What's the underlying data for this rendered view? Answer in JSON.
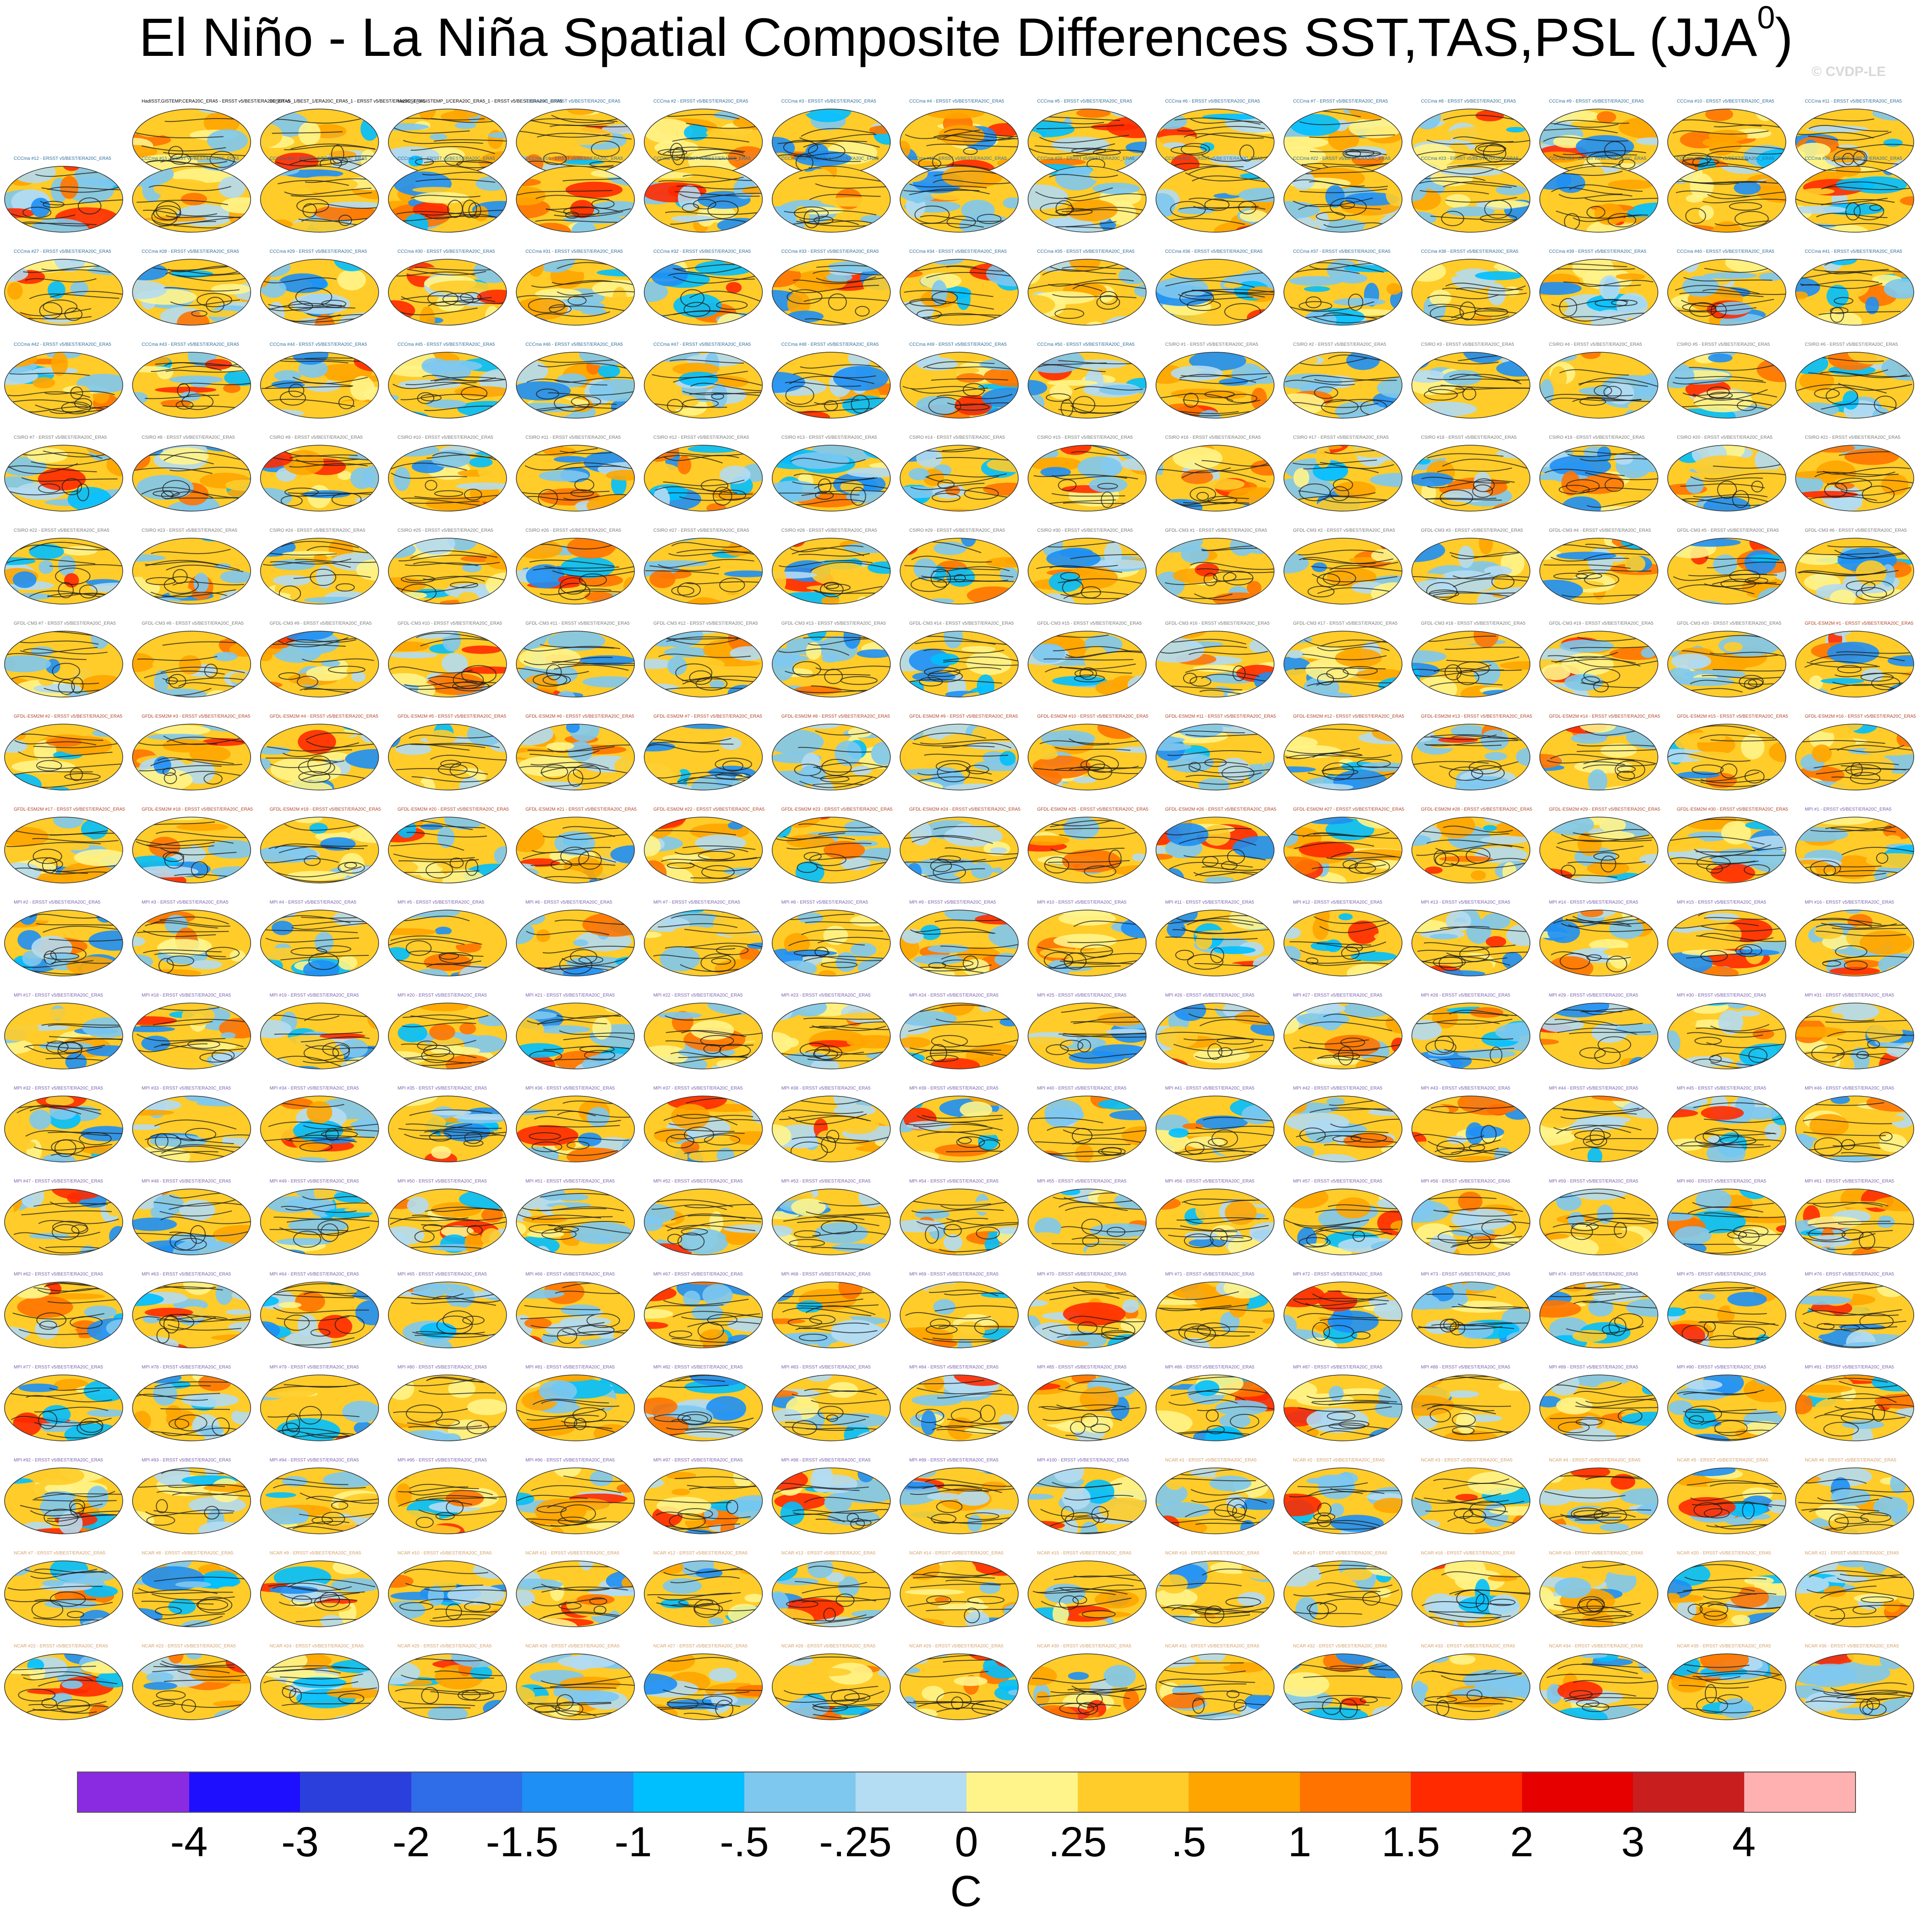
{
  "title": "El Niño - La Niña Spatial Composite Differences SST,TAS,PSL (JJA",
  "title_superscript": "0",
  "title_close": ")",
  "watermark": "© CVDP-LE",
  "panels": {
    "observation_titles": [
      "HadISST,GISTEMP,CERA20C_ERA5 - ERSST v5/BEST/ERA20C_ERA5",
      "ERSST v5_1/BEST_1/ERA20C_ERA5_1 - ERSST v5/BEST/ERA20C_ERA5",
      "HadISST_1/GISTEMP_1/CERA20C_ERA5_1 - ERSST v5/BEST/ERA20C_ERA5"
    ],
    "comparison_suffix": " - ERSST v5/BEST/ERA20C_ERA5",
    "model_groups": [
      {
        "model": "CCCma",
        "count": 50,
        "color": "#2f6f9a"
      },
      {
        "model": "CSIRO",
        "count": 30,
        "color": "#7a7a7a"
      },
      {
        "model": "GFDL-CM3",
        "count": 20,
        "color": "#7a7a7a"
      },
      {
        "model": "GFDL-ESM2M",
        "count": 30,
        "color": "#b0442a"
      },
      {
        "model": "MPI",
        "count": 100,
        "color": "#7a5fb0"
      },
      {
        "model": "NCAR",
        "count": 40,
        "color": "#d4a06a"
      },
      {
        "model": "SMHI_KNMI",
        "count": 16,
        "color": "#7a5fb0"
      }
    ]
  },
  "colorbar": {
    "colors": [
      "#8a2be2",
      "#1e0fff",
      "#2b3fdd",
      "#2f6ce8",
      "#1e8ff5",
      "#00bfff",
      "#7ec8f0",
      "#b4dcf2",
      "#fff48a",
      "#ffcc29",
      "#ffa500",
      "#ff7400",
      "#ff2a00",
      "#e60000",
      "#c81e1e",
      "#ffb0b0"
    ],
    "tick_labels": [
      "-4",
      "-3",
      "-2",
      "-1.5",
      "-1",
      "-.5",
      "-.25",
      "0",
      ".25",
      ".5",
      "1",
      "1.5",
      "2",
      "3",
      "4"
    ],
    "units": "C"
  }
}
